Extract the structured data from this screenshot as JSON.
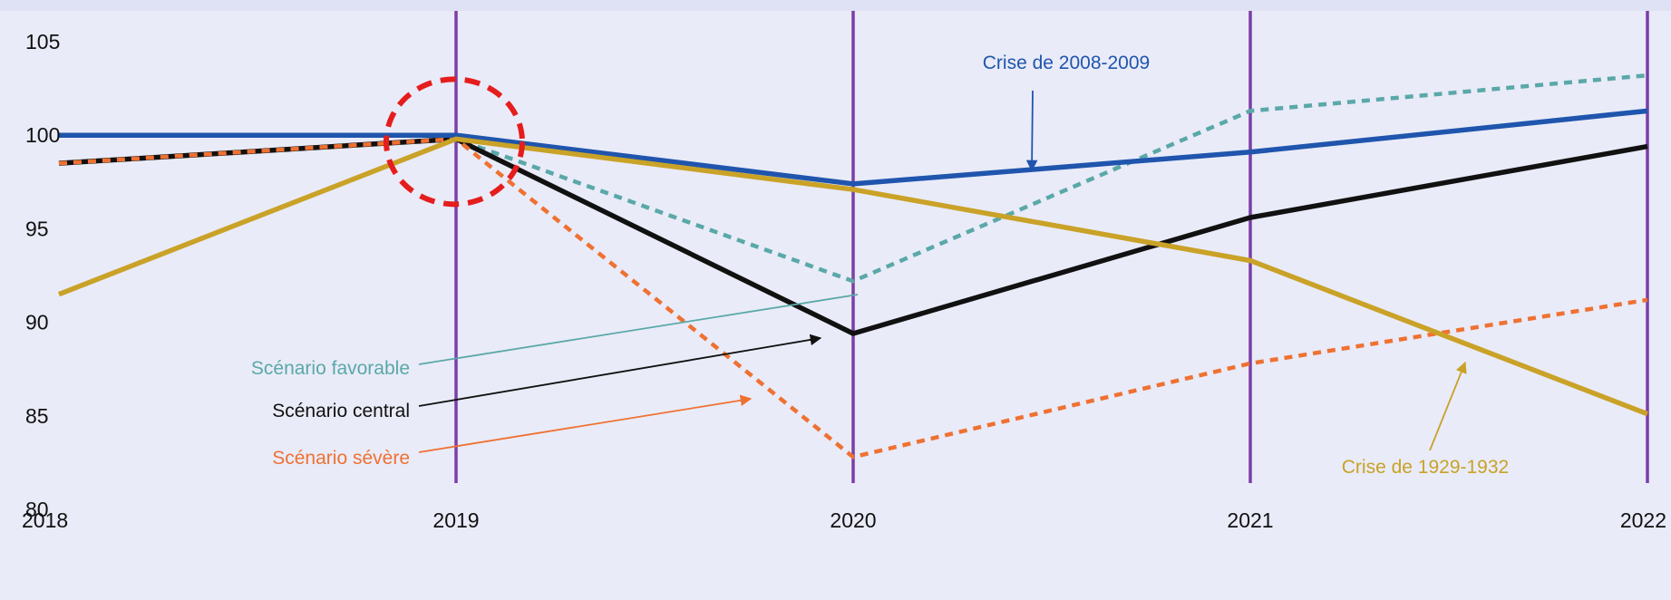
{
  "chart_data": {
    "type": "line",
    "x": [
      2018,
      2019,
      2020,
      2021,
      2022
    ],
    "xlim": [
      2018,
      2022
    ],
    "ylim": [
      80,
      105
    ],
    "yticks": [
      80,
      85,
      90,
      95,
      100,
      105
    ],
    "xtick_labels": [
      "2018",
      "2019",
      "2020",
      "2021",
      "2022"
    ],
    "ytick_labels": [
      "80",
      "85",
      "90",
      "95",
      "100",
      "105"
    ],
    "vertical_lines_at": [
      2019,
      2020,
      2021,
      2022
    ],
    "series": [
      {
        "name": "Crise de 2008-2009",
        "style": "solid",
        "color": "#1f55ad",
        "values": [
          100,
          100,
          97.4,
          99.1,
          101.3
        ]
      },
      {
        "name": "Scénario favorable",
        "style": "dashed",
        "color": "#5aa8a8",
        "values": [
          98.5,
          99.8,
          92.2,
          101.3,
          103.2
        ]
      },
      {
        "name": "Scénario central",
        "style": "solid",
        "color": "#111111",
        "values": [
          98.5,
          99.8,
          89.4,
          95.6,
          99.4
        ]
      },
      {
        "name": "Scénario sévère",
        "style": "dashed",
        "color": "#ef7132",
        "values": [
          98.5,
          99.8,
          82.8,
          87.8,
          91.2
        ]
      },
      {
        "name": "Crise de 1929-1932",
        "style": "solid",
        "color": "#c9a227",
        "values": [
          91.5,
          99.8,
          97.1,
          93.3,
          85.1
        ]
      }
    ],
    "highlight": {
      "x": 2019,
      "y": 99.8,
      "color": "#e51d1d"
    }
  },
  "colors": {
    "background": "#e9ebf8",
    "vertical_line": "#7a3fa6"
  }
}
